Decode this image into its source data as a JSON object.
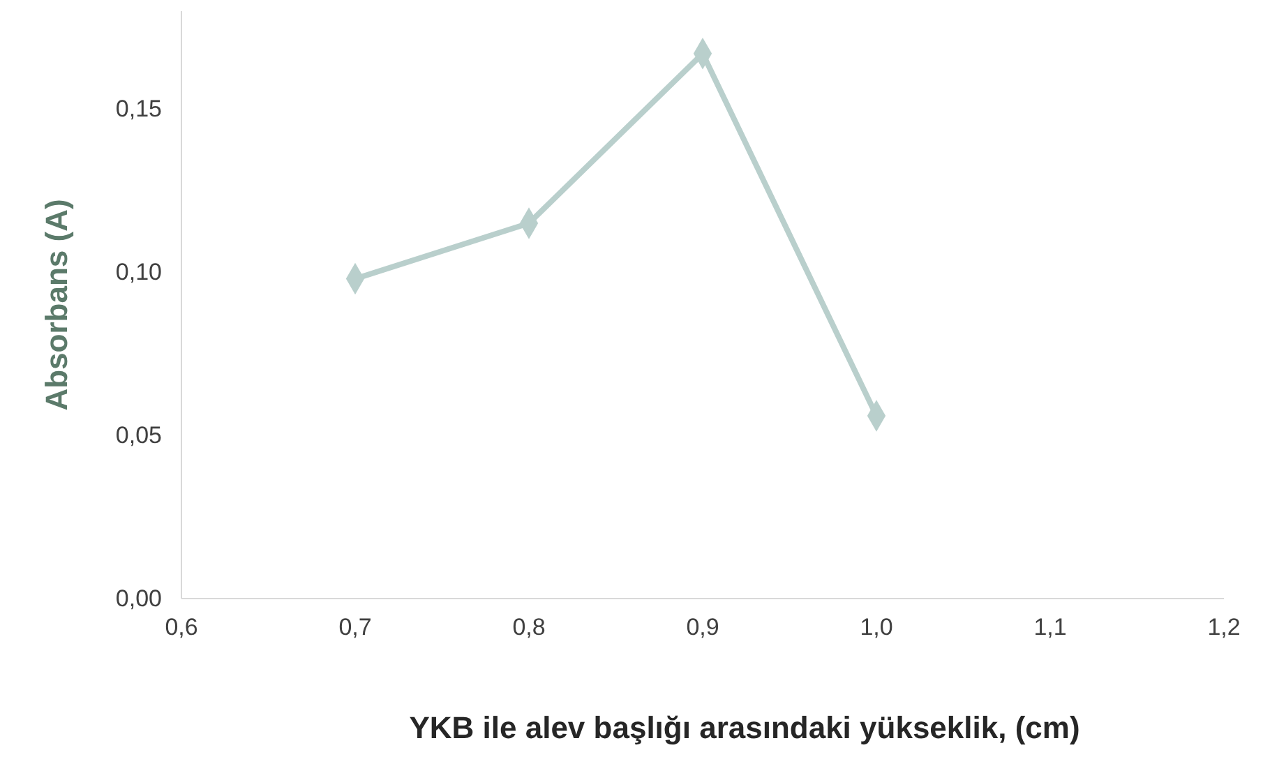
{
  "chart_data": {
    "type": "line",
    "xlabel": "YKB ile alev başlığı arasındaki yükseklik, (cm)",
    "ylabel": "Absorbans (A)",
    "x": [
      0.7,
      0.8,
      0.9,
      1.0
    ],
    "series": [
      {
        "color": "#b9cfcc",
        "values": [
          0.098,
          0.115,
          0.167,
          0.056
        ]
      }
    ],
    "xlim": [
      0.6,
      1.2
    ],
    "xticks": [
      {
        "value": 0.6,
        "label": "0,6"
      },
      {
        "value": 0.7,
        "label": "0,7"
      },
      {
        "value": 0.8,
        "label": "0,8"
      },
      {
        "value": 0.9,
        "label": "0,9"
      },
      {
        "value": 1.0,
        "label": "1,0"
      },
      {
        "value": 1.1,
        "label": "1,1"
      },
      {
        "value": 1.2,
        "label": "1,2"
      }
    ],
    "ylim": [
      0,
      0.18
    ],
    "yticks": [
      {
        "value": 0,
        "label": "0,00"
      },
      {
        "value": 0.05,
        "label": "0,05"
      },
      {
        "value": 0.1,
        "label": "0,10"
      },
      {
        "value": 0.15,
        "label": "0,15"
      }
    ],
    "marker": "diamond",
    "grid": false
  }
}
